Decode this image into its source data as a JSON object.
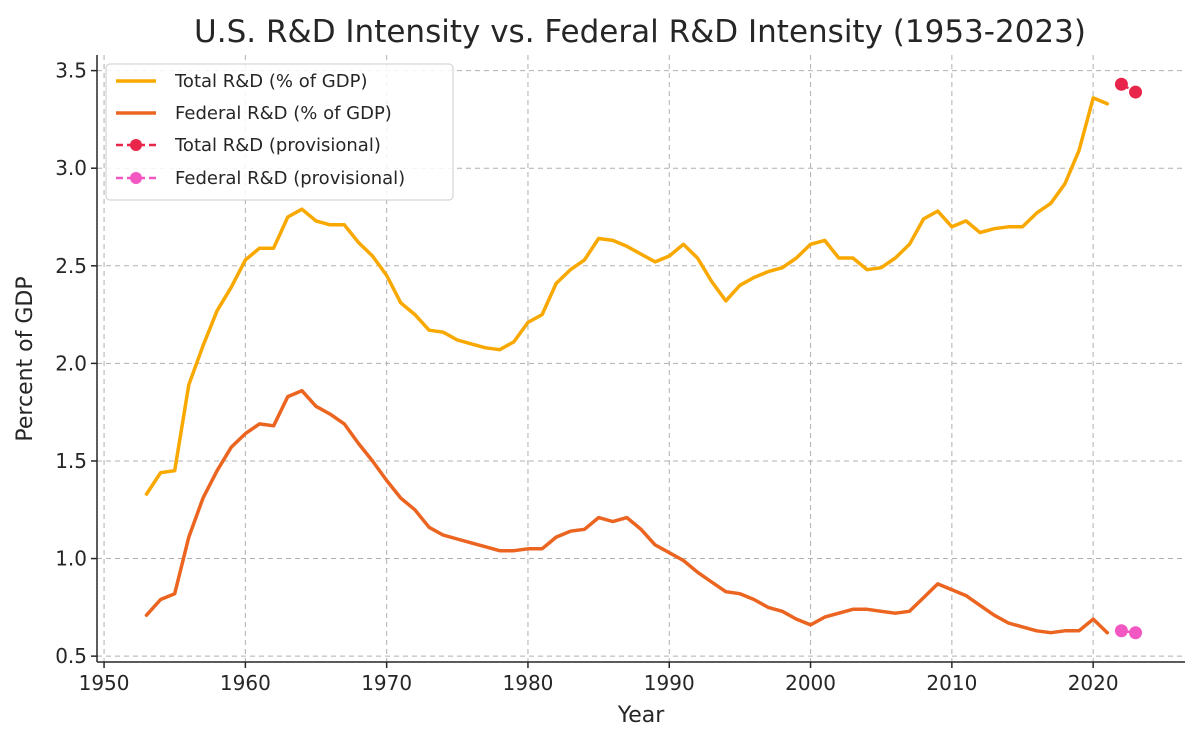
{
  "chart_data": {
    "type": "line",
    "title": "U.S. R&D Intensity vs. Federal R&D Intensity (1953-2023)",
    "xlabel": "Year",
    "ylabel": "Percent of GDP",
    "xlim": [
      1949.5,
      2026.5
    ],
    "ylim": [
      0.47,
      3.58
    ],
    "xticks": [
      1950,
      1960,
      1970,
      1980,
      1990,
      2000,
      2010,
      2020
    ],
    "yticks": [
      0.5,
      1.0,
      1.5,
      2.0,
      2.5,
      3.0,
      3.5
    ],
    "xtick_labels": [
      "1950",
      "1960",
      "1970",
      "1980",
      "1990",
      "2000",
      "2010",
      "2020"
    ],
    "ytick_labels": [
      "0.5",
      "1.0",
      "1.5",
      "2.0",
      "2.5",
      "3.0",
      "3.5"
    ],
    "grid": true,
    "legend_position": "top-left",
    "series": [
      {
        "name": "Total R&D (% of GDP)",
        "style": "solid",
        "color": "#F9A800",
        "x": [
          1953,
          1954,
          1955,
          1956,
          1957,
          1958,
          1959,
          1960,
          1961,
          1962,
          1963,
          1964,
          1965,
          1966,
          1967,
          1968,
          1969,
          1970,
          1971,
          1972,
          1973,
          1974,
          1975,
          1976,
          1977,
          1978,
          1979,
          1980,
          1981,
          1982,
          1983,
          1984,
          1985,
          1986,
          1987,
          1988,
          1989,
          1990,
          1991,
          1992,
          1993,
          1994,
          1995,
          1996,
          1997,
          1998,
          1999,
          2000,
          2001,
          2002,
          2003,
          2004,
          2005,
          2006,
          2007,
          2008,
          2009,
          2010,
          2011,
          2012,
          2013,
          2014,
          2015,
          2016,
          2017,
          2018,
          2019,
          2020,
          2021
        ],
        "values": [
          1.33,
          1.44,
          1.45,
          1.89,
          2.09,
          2.27,
          2.39,
          2.53,
          2.59,
          2.59,
          2.75,
          2.79,
          2.73,
          2.71,
          2.71,
          2.62,
          2.55,
          2.45,
          2.31,
          2.25,
          2.17,
          2.16,
          2.12,
          2.1,
          2.08,
          2.07,
          2.11,
          2.21,
          2.25,
          2.41,
          2.48,
          2.53,
          2.64,
          2.63,
          2.6,
          2.56,
          2.52,
          2.55,
          2.61,
          2.54,
          2.42,
          2.32,
          2.4,
          2.44,
          2.47,
          2.49,
          2.54,
          2.61,
          2.63,
          2.54,
          2.54,
          2.48,
          2.49,
          2.54,
          2.61,
          2.74,
          2.78,
          2.7,
          2.73,
          2.67,
          2.69,
          2.7,
          2.7,
          2.77,
          2.82,
          2.92,
          3.09,
          3.36,
          3.33
        ]
      },
      {
        "name": "Federal R&D (% of GDP)",
        "style": "solid",
        "color": "#EB6420",
        "x": [
          1953,
          1954,
          1955,
          1956,
          1957,
          1958,
          1959,
          1960,
          1961,
          1962,
          1963,
          1964,
          1965,
          1966,
          1967,
          1968,
          1969,
          1970,
          1971,
          1972,
          1973,
          1974,
          1975,
          1976,
          1977,
          1978,
          1979,
          1980,
          1981,
          1982,
          1983,
          1984,
          1985,
          1986,
          1987,
          1988,
          1989,
          1990,
          1991,
          1992,
          1993,
          1994,
          1995,
          1996,
          1997,
          1998,
          1999,
          2000,
          2001,
          2002,
          2003,
          2004,
          2005,
          2006,
          2007,
          2008,
          2009,
          2010,
          2011,
          2012,
          2013,
          2014,
          2015,
          2016,
          2017,
          2018,
          2019,
          2020,
          2021
        ],
        "values": [
          0.71,
          0.79,
          0.82,
          1.11,
          1.31,
          1.45,
          1.57,
          1.64,
          1.69,
          1.68,
          1.83,
          1.86,
          1.78,
          1.74,
          1.69,
          1.59,
          1.5,
          1.4,
          1.31,
          1.25,
          1.16,
          1.12,
          1.1,
          1.08,
          1.06,
          1.04,
          1.04,
          1.05,
          1.05,
          1.11,
          1.14,
          1.15,
          1.21,
          1.19,
          1.21,
          1.15,
          1.07,
          1.03,
          0.99,
          0.93,
          0.88,
          0.83,
          0.82,
          0.79,
          0.75,
          0.73,
          0.69,
          0.66,
          0.7,
          0.72,
          0.74,
          0.74,
          0.73,
          0.72,
          0.73,
          0.8,
          0.87,
          0.84,
          0.81,
          0.76,
          0.71,
          0.67,
          0.65,
          0.63,
          0.62,
          0.63,
          0.63,
          0.69,
          0.62
        ]
      },
      {
        "name": "Total R&D (provisional)",
        "style": "dashed-markers",
        "color": "#E8254A",
        "x": [
          2022,
          2023
        ],
        "values": [
          3.43,
          3.39
        ]
      },
      {
        "name": "Federal R&D (provisional)",
        "style": "dashed-markers",
        "color": "#F257C2",
        "x": [
          2022,
          2023
        ],
        "values": [
          0.63,
          0.62
        ]
      }
    ]
  }
}
